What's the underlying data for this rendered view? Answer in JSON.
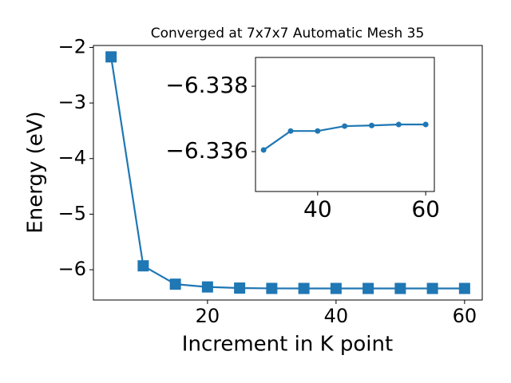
{
  "chart_data": [
    {
      "type": "line",
      "title": "Converged at 7x7x7 Automatic Mesh 35",
      "xlabel": "Increment in K point",
      "ylabel": "Energy (eV)",
      "x": [
        5,
        10,
        15,
        20,
        25,
        30,
        35,
        40,
        45,
        50,
        55,
        60
      ],
      "series": [
        {
          "color": "#1f77b4",
          "marker": "square",
          "values": [
            -2.17,
            -5.93,
            -6.26,
            -6.31,
            -6.33,
            -6.33605,
            -6.33663,
            -6.33663,
            -6.33678,
            -6.3368,
            -6.33683,
            -6.33683
          ]
        }
      ],
      "xlim": [
        2.25,
        62.75
      ],
      "xticks": [
        20,
        40,
        60
      ],
      "ylim": [
        -6.545,
        -1.965
      ],
      "yticks": [
        {
          "value": -6,
          "label": "−6"
        },
        {
          "value": -5,
          "label": "−5"
        },
        {
          "value": -4,
          "label": "−4"
        },
        {
          "value": -3,
          "label": "−3"
        },
        {
          "value": -2,
          "label": "−2"
        }
      ]
    },
    {
      "type": "line",
      "x": [
        30,
        35,
        40,
        45,
        50,
        55,
        60
      ],
      "series": [
        {
          "color": "#1f77b4",
          "marker": "circle",
          "values": [
            -6.33605,
            -6.33663,
            -6.33663,
            -6.33678,
            -6.3368,
            -6.33683,
            -6.33683
          ]
        }
      ],
      "xlim": [
        28.5,
        61.6
      ],
      "xticks": [
        40,
        60
      ],
      "ylim": [
        -6.33478,
        -6.33888
      ],
      "yticks": [
        {
          "value": -6.336,
          "label": "−6.336"
        },
        {
          "value": -6.338,
          "label": "−6.338"
        }
      ]
    }
  ]
}
